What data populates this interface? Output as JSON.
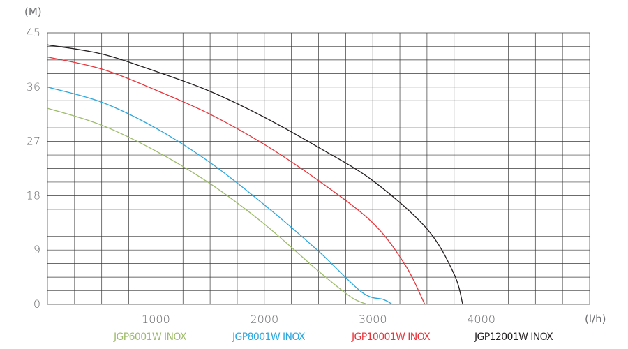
{
  "chart_data": {
    "type": "line",
    "title": "",
    "xlabel": "",
    "ylabel": "",
    "y_unit_label": "(M)",
    "x_unit_label": "(l/h)",
    "xlim": [
      0,
      5000
    ],
    "ylim": [
      0,
      45
    ],
    "x_ticks": [
      1000,
      2000,
      3000,
      4000
    ],
    "x_tick_labels": [
      "1000",
      "2000",
      "3000",
      "4000"
    ],
    "y_ticks": [
      0,
      9,
      18,
      27,
      36,
      45
    ],
    "y_tick_labels": [
      "0",
      "9",
      "18",
      "27",
      "36",
      "45"
    ],
    "grid": true,
    "legend_position": "bottom",
    "series": [
      {
        "name": "JGP6001W INOX",
        "color": "#9dbb6a",
        "x": [
          0,
          500,
          1000,
          1500,
          2000,
          2500,
          2800,
          2950
        ],
        "y": [
          32.5,
          29.7,
          25.4,
          20.0,
          13.3,
          5.5,
          1.2,
          0
        ]
      },
      {
        "name": "JGP8001W INOX",
        "color": "#2aa7df",
        "x": [
          0,
          500,
          1000,
          1500,
          2000,
          2500,
          2900,
          3100,
          3180
        ],
        "y": [
          36.0,
          33.5,
          29.2,
          23.5,
          16.5,
          8.8,
          2.0,
          0.8,
          0
        ]
      },
      {
        "name": "JGP10001W INOX",
        "color": "#e8343a",
        "x": [
          0,
          500,
          1000,
          1500,
          2000,
          2500,
          3000,
          3300,
          3480
        ],
        "y": [
          41.0,
          39.0,
          35.5,
          31.5,
          26.5,
          20.5,
          13.5,
          6.5,
          0
        ]
      },
      {
        "name": "JGP12001W INOX",
        "color": "#231f20",
        "x": [
          0,
          500,
          1000,
          1500,
          2000,
          2500,
          3000,
          3500,
          3750,
          3830
        ],
        "y": [
          43.0,
          41.5,
          38.6,
          35.3,
          31.0,
          26.0,
          20.5,
          12.5,
          5.0,
          0
        ]
      }
    ]
  }
}
